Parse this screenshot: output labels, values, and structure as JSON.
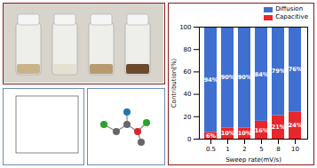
{
  "chart_data": {
    "type": "bar",
    "stacked": true,
    "data_labels": true,
    "legend": "top-right",
    "x_label": "Sweep rate(mV/s)",
    "y_label": "Contribution(%)",
    "categories": [
      "0.5",
      "1",
      "2",
      "5",
      "8",
      "10"
    ],
    "series": [
      {
        "name": "Diffusion",
        "color": "#3f6fd1",
        "values": [
          94,
          90,
          90,
          84,
          79,
          76
        ],
        "value_labels": [
          "94%",
          "90%",
          "90%",
          "84%",
          "79%",
          "76%"
        ]
      },
      {
        "name": "Capacitive",
        "color": "#e8262b",
        "values": [
          6,
          10,
          10,
          16,
          21,
          24
        ],
        "value_labels": [
          "6%",
          "10%",
          "10%",
          "16%",
          "21%",
          "24%"
        ]
      }
    ],
    "ylim": [
      0,
      100
    ],
    "yticks": [
      0,
      20,
      40,
      60,
      80,
      100
    ]
  }
}
